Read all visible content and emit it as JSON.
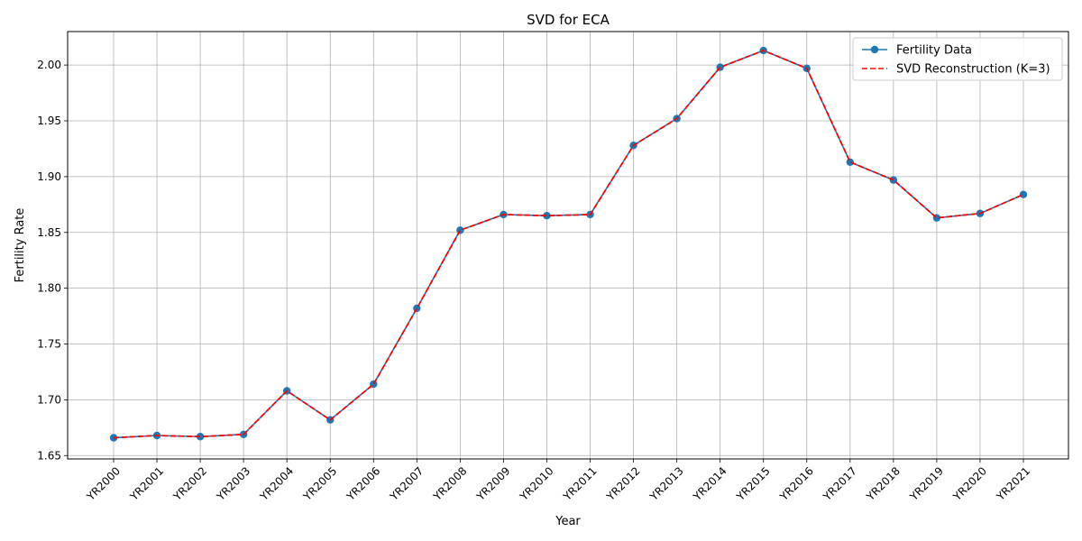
{
  "chart_data": {
    "type": "line",
    "title": "SVD for ECA",
    "xlabel": "Year",
    "ylabel": "Fertility Rate",
    "categories": [
      "YR2000",
      "YR2001",
      "YR2002",
      "YR2003",
      "YR2004",
      "YR2005",
      "YR2006",
      "YR2007",
      "YR2008",
      "YR2009",
      "YR2010",
      "YR2011",
      "YR2012",
      "YR2013",
      "YR2014",
      "YR2015",
      "YR2016",
      "YR2017",
      "YR2018",
      "YR2019",
      "YR2020",
      "YR2021"
    ],
    "ylim": [
      1.647,
      2.03
    ],
    "yticks": [
      "1.65",
      "1.70",
      "1.75",
      "1.80",
      "1.85",
      "1.90",
      "1.95",
      "2.00"
    ],
    "grid": true,
    "legend_position": "top-right",
    "series": [
      {
        "name": "Fertility Data",
        "color": "#1f77b4",
        "style": "solid-with-markers",
        "values": [
          1.666,
          1.668,
          1.667,
          1.669,
          1.708,
          1.682,
          1.714,
          1.782,
          1.852,
          1.866,
          1.865,
          1.866,
          1.928,
          1.952,
          1.998,
          2.013,
          1.997,
          1.913,
          1.897,
          1.863,
          1.867,
          1.884
        ]
      },
      {
        "name": "SVD Reconstruction (K=3)",
        "color": "#ff0000",
        "style": "dashed",
        "values": [
          1.666,
          1.668,
          1.667,
          1.669,
          1.708,
          1.682,
          1.714,
          1.782,
          1.852,
          1.866,
          1.865,
          1.866,
          1.928,
          1.952,
          1.998,
          2.013,
          1.997,
          1.913,
          1.897,
          1.863,
          1.867,
          1.884
        ]
      }
    ]
  }
}
